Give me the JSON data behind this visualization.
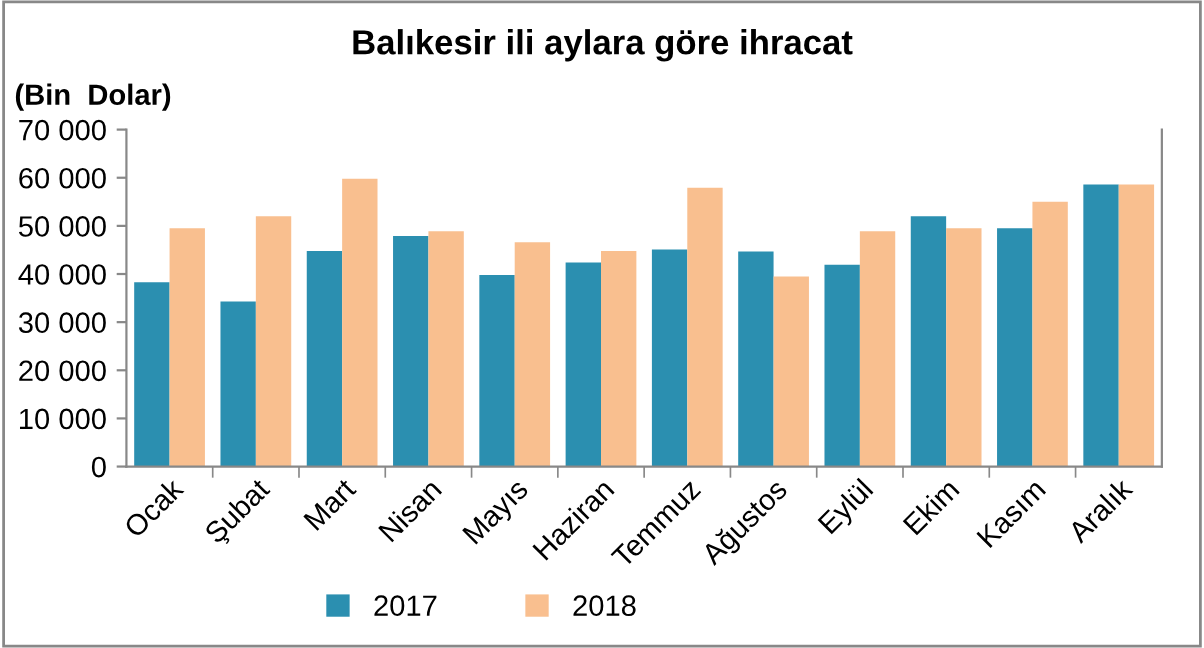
{
  "chart_data": {
    "type": "bar",
    "title": "Balıkesir ili aylara göre ihracat",
    "ylabel": "(Bin  Dolar)",
    "categories": [
      "Ocak",
      "Şubat",
      "Mart",
      "Nisan",
      "Mayıs",
      "Haziran",
      "Temmuz",
      "Ağustos",
      "Eylül",
      "Ekim",
      "Kasım",
      "Aralık"
    ],
    "series": [
      {
        "name": "2017",
        "color": "#2b8fb0",
        "values": [
          38300,
          34300,
          44800,
          47900,
          39800,
          42400,
          45100,
          44700,
          41900,
          52000,
          49500,
          58600
        ]
      },
      {
        "name": "2018",
        "color": "#f9bf8f",
        "values": [
          49500,
          52000,
          59800,
          48900,
          46600,
          44800,
          57900,
          39500,
          48900,
          49500,
          55000,
          58600
        ]
      }
    ],
    "ylim": [
      0,
      70000
    ],
    "yticks": [
      0,
      {
        "value": 10000,
        "label": "10 000"
      },
      {
        "value": 20000,
        "label": "20 000"
      },
      {
        "value": 30000,
        "label": "30 000"
      },
      {
        "value": 40000,
        "label": "40 000"
      },
      {
        "value": 50000,
        "label": "50 000"
      },
      {
        "value": 60000,
        "label": "60 000"
      },
      {
        "value": 70000,
        "label": "70 000"
      }
    ],
    "grid": false,
    "legend": "bottom"
  }
}
